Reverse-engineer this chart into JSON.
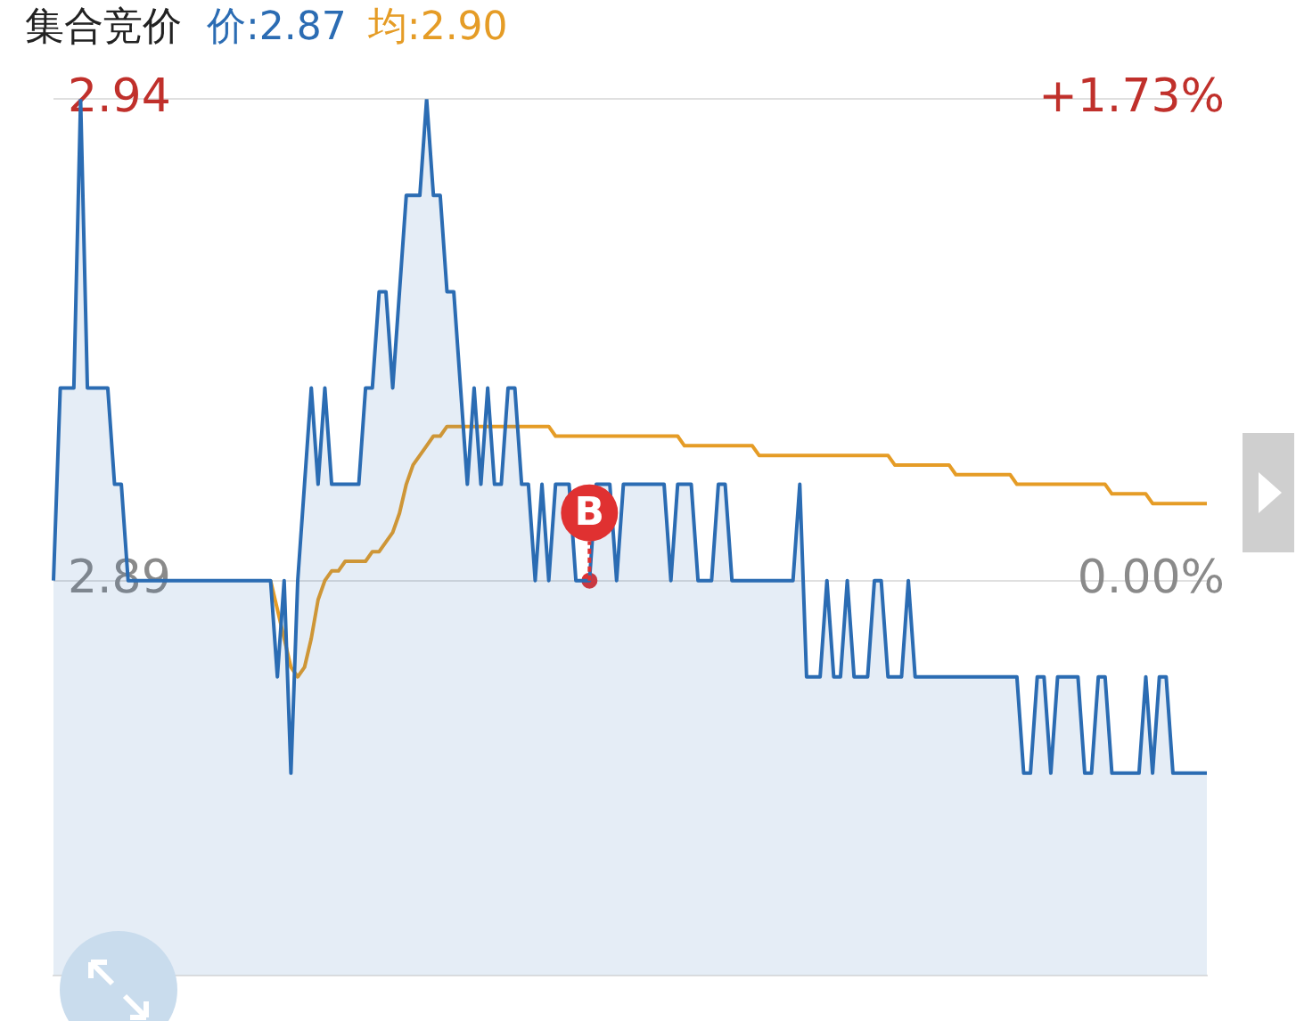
{
  "chart_data": {
    "type": "line",
    "title": "集合竞价",
    "legend": "top left",
    "grid": "y",
    "marker": "none",
    "categories": [
      null,
      null,
      null,
      null,
      null,
      null,
      null,
      null,
      null,
      null,
      null,
      null,
      null,
      null,
      null,
      null,
      null,
      null,
      null,
      null,
      null,
      null,
      null,
      null,
      null,
      null,
      null,
      null,
      null,
      null,
      null,
      null,
      null,
      null,
      null,
      null,
      null,
      null,
      null,
      null,
      null,
      null,
      null,
      null,
      null,
      null,
      null,
      null,
      null,
      null,
      null,
      null,
      null,
      null,
      null,
      null,
      null,
      null,
      null,
      null,
      null,
      null,
      null,
      null,
      null,
      null,
      null,
      null,
      null,
      null,
      null,
      null,
      null,
      null,
      null,
      null,
      null,
      null,
      null,
      null,
      null,
      null,
      null,
      null,
      null,
      null,
      null,
      null,
      null,
      null,
      null,
      null,
      null,
      null,
      null,
      null,
      null,
      null,
      null,
      null,
      null,
      null,
      null,
      null,
      null,
      null,
      null,
      null,
      null,
      null,
      null,
      null,
      null,
      null,
      null,
      null,
      null,
      null,
      null,
      null,
      null,
      null,
      null,
      null,
      null,
      null,
      null,
      null,
      null,
      null,
      null,
      null,
      null,
      null,
      null,
      null,
      null,
      null,
      null,
      null,
      null,
      null,
      null,
      null,
      null,
      null,
      null,
      null,
      null,
      null,
      null,
      null,
      null,
      null,
      null,
      null,
      null,
      null,
      null,
      null,
      null,
      null,
      null,
      null,
      null,
      null,
      null,
      null,
      null,
      null,
      null
    ],
    "ylim": [
      2.849,
      2.94
    ],
    "yticks": [
      2.89,
      2.94
    ],
    "y2lim": [
      -1.419,
      1.73
    ],
    "y2ticks": [
      {
        "value": 0,
        "label": "0.00%"
      },
      {
        "value": 1.73,
        "label": "+1.73%"
      }
    ],
    "annotations": [
      "B"
    ],
    "series": [
      {
        "name": "价:2.87",
        "type": "area",
        "color": "#2b6cb3",
        "values": [
          2.89,
          2.91,
          2.91,
          2.91,
          2.94,
          2.91,
          2.91,
          2.91,
          2.91,
          2.9,
          2.9,
          2.89,
          2.89,
          2.89,
          2.89,
          2.89,
          2.89,
          2.89,
          2.89,
          2.89,
          2.89,
          2.89,
          2.89,
          2.89,
          2.89,
          2.89,
          2.89,
          2.89,
          2.89,
          2.89,
          2.89,
          2.89,
          2.89,
          2.88,
          2.89,
          2.87,
          2.89,
          2.9,
          2.91,
          2.9,
          2.91,
          2.9,
          2.9,
          2.9,
          2.9,
          2.9,
          2.91,
          2.91,
          2.92,
          2.92,
          2.91,
          2.92,
          2.93,
          2.93,
          2.93,
          2.94,
          2.93,
          2.93,
          2.92,
          2.92,
          2.91,
          2.9,
          2.91,
          2.9,
          2.91,
          2.9,
          2.9,
          2.91,
          2.91,
          2.9,
          2.9,
          2.89,
          2.9,
          2.89,
          2.9,
          2.9,
          2.9,
          2.89,
          2.89,
          2.89,
          2.9,
          2.9,
          2.9,
          2.89,
          2.9,
          2.9,
          2.9,
          2.9,
          2.9,
          2.9,
          2.9,
          2.89,
          2.9,
          2.9,
          2.9,
          2.89,
          2.89,
          2.89,
          2.9,
          2.9,
          2.89,
          2.89,
          2.89,
          2.89,
          2.89,
          2.89,
          2.89,
          2.89,
          2.89,
          2.89,
          2.9,
          2.88,
          2.88,
          2.88,
          2.89,
          2.88,
          2.88,
          2.89,
          2.88,
          2.88,
          2.88,
          2.89,
          2.89,
          2.88,
          2.88,
          2.88,
          2.89,
          2.88,
          2.88,
          2.88,
          2.88,
          2.88,
          2.88,
          2.88,
          2.88,
          2.88,
          2.88,
          2.88,
          2.88,
          2.88,
          2.88,
          2.88,
          2.88,
          2.87,
          2.87,
          2.88,
          2.88,
          2.87,
          2.88,
          2.88,
          2.88,
          2.88,
          2.87,
          2.87,
          2.88,
          2.88,
          2.87,
          2.87,
          2.87,
          2.87,
          2.87,
          2.88,
          2.87,
          2.88,
          2.88,
          2.87,
          2.87,
          2.87,
          2.87,
          2.87,
          2.87
        ]
      },
      {
        "name": "均:2.90",
        "color": "#e59c26",
        "values": [
          null,
          null,
          null,
          null,
          null,
          null,
          null,
          null,
          null,
          null,
          null,
          null,
          null,
          null,
          null,
          null,
          null,
          null,
          null,
          null,
          null,
          null,
          null,
          null,
          null,
          null,
          null,
          null,
          null,
          null,
          null,
          null,
          2.89,
          2.887,
          2.884,
          2.881,
          2.88,
          2.881,
          2.884,
          2.888,
          2.89,
          2.891,
          2.891,
          2.892,
          2.892,
          2.892,
          2.892,
          2.893,
          2.893,
          2.894,
          2.895,
          2.897,
          2.9,
          2.902,
          2.903,
          2.904,
          2.905,
          2.905,
          2.906,
          2.906,
          2.906,
          2.906,
          2.906,
          2.906,
          2.906,
          2.906,
          2.906,
          2.906,
          2.906,
          2.906,
          2.906,
          2.906,
          2.906,
          2.906,
          2.905,
          2.905,
          2.905,
          2.905,
          2.905,
          2.905,
          2.905,
          2.905,
          2.905,
          2.905,
          2.905,
          2.905,
          2.905,
          2.905,
          2.905,
          2.905,
          2.905,
          2.905,
          2.905,
          2.904,
          2.904,
          2.904,
          2.904,
          2.904,
          2.904,
          2.904,
          2.904,
          2.904,
          2.904,
          2.904,
          2.903,
          2.903,
          2.903,
          2.903,
          2.903,
          2.903,
          2.903,
          2.903,
          2.903,
          2.903,
          2.903,
          2.903,
          2.903,
          2.903,
          2.903,
          2.903,
          2.903,
          2.903,
          2.903,
          2.903,
          2.902,
          2.902,
          2.902,
          2.902,
          2.902,
          2.902,
          2.902,
          2.902,
          2.902,
          2.901,
          2.901,
          2.901,
          2.901,
          2.901,
          2.901,
          2.901,
          2.901,
          2.901,
          2.9,
          2.9,
          2.9,
          2.9,
          2.9,
          2.9,
          2.9,
          2.9,
          2.9,
          2.9,
          2.9,
          2.9,
          2.9,
          2.9,
          2.899,
          2.899,
          2.899,
          2.899,
          2.899,
          2.899,
          2.898,
          2.898,
          2.898,
          2.898,
          2.898,
          2.898,
          2.898,
          2.898,
          2.898
        ]
      },
      {
        "type": "scatter",
        "marker": "circle",
        "color": "#e03131",
        "values": [
          null,
          null,
          null,
          null,
          null,
          null,
          null,
          null,
          null,
          null,
          null,
          null,
          null,
          null,
          null,
          null,
          null,
          null,
          null,
          null,
          null,
          null,
          null,
          null,
          null,
          null,
          null,
          null,
          null,
          null,
          null,
          null,
          null,
          null,
          null,
          null,
          null,
          null,
          null,
          null,
          null,
          null,
          null,
          null,
          null,
          null,
          null,
          null,
          null,
          null,
          null,
          null,
          null,
          null,
          null,
          null,
          null,
          null,
          null,
          null,
          null,
          null,
          null,
          null,
          null,
          null,
          null,
          null,
          null,
          null,
          null,
          null,
          null,
          null,
          null,
          null,
          null,
          null,
          null,
          2.89,
          null,
          null,
          null,
          null,
          null,
          null,
          null,
          null,
          null,
          null,
          null,
          null,
          null,
          null,
          null,
          null,
          null,
          null,
          null,
          null,
          null,
          null,
          null,
          null,
          null,
          null,
          null,
          null,
          null,
          null,
          null,
          null,
          null,
          null,
          null,
          null,
          null,
          null,
          null,
          null,
          null,
          null,
          null,
          null,
          null,
          null,
          null,
          null,
          null,
          null,
          null,
          null,
          null,
          null,
          null,
          null,
          null,
          null,
          null,
          null,
          null,
          null,
          null,
          null,
          null,
          null,
          null,
          null,
          null,
          null,
          null,
          null,
          null,
          null,
          null,
          null,
          null,
          null,
          null,
          null,
          null,
          null,
          null,
          null,
          null,
          null,
          null,
          null,
          null,
          null,
          null
        ]
      }
    ]
  }
}
